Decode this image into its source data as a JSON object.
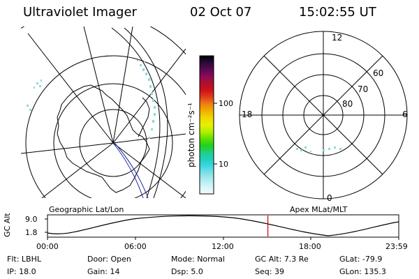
{
  "header": {
    "instrument": "Ultraviolet Imager",
    "date": "02 Oct 07",
    "time": "15:02:55 UT"
  },
  "geo_panel": {
    "label": "Geographic Lat/Lon"
  },
  "colorbar": {
    "unit_label": "photon cm⁻²s⁻¹",
    "ticks": [
      "100",
      "10"
    ],
    "colors": [
      "#000000",
      "#2a0a3a",
      "#5a0a50",
      "#8a0a5a",
      "#b0102a",
      "#d0101a",
      "#e0401a",
      "#f08010",
      "#f0b000",
      "#f0d800",
      "#e8f000",
      "#b0f000",
      "#60e000",
      "#20d020",
      "#20d080",
      "#20d0c0",
      "#40d8e0",
      "#80e0e8",
      "#b0ecf0",
      "#d8f4f8",
      "#f0fafc"
    ]
  },
  "polar_panel": {
    "label": "Apex MLat/MLT",
    "mlt_labels": {
      "top": "12",
      "left": "18",
      "right": "6",
      "bottom": "0"
    },
    "lat_labels": [
      "60",
      "70",
      "80"
    ]
  },
  "altitude_strip": {
    "axis_title": "GC Alt",
    "y_ticks": [
      "9.0",
      "1.8"
    ],
    "x_ticks": [
      "00:00",
      "06:00",
      "12:00",
      "18:00",
      "23:59"
    ],
    "current_marker_time": "15:02:55",
    "marker_color": "#cc0000"
  },
  "status": {
    "row1": [
      {
        "label": "Flt:",
        "value": "LBHL"
      },
      {
        "label": "Door:",
        "value": "Open"
      },
      {
        "label": "Mode:",
        "value": "Normal"
      },
      {
        "label": "GC Alt:",
        "value": "7.3 Re"
      },
      {
        "label": "GLat:",
        "value": "-79.9"
      }
    ],
    "row2": [
      {
        "label": "IP:",
        "value": "18.0"
      },
      {
        "label": "Gain:",
        "value": "14"
      },
      {
        "label": "Dsp:",
        "value": "5.0"
      },
      {
        "label": "Seq:",
        "value": "39"
      },
      {
        "label": "GLon:",
        "value": "135.3"
      }
    ]
  }
}
